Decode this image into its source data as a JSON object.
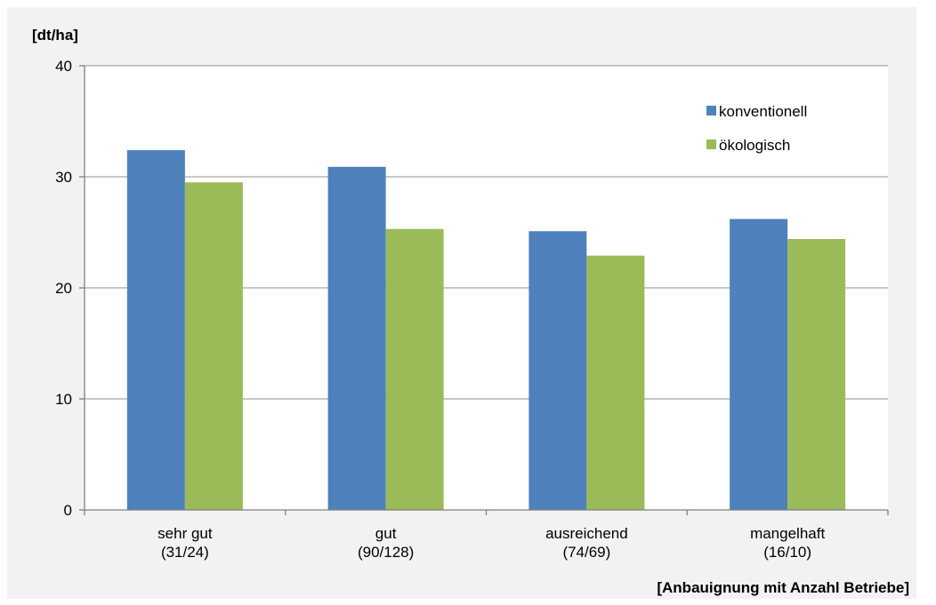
{
  "chart_data": {
    "type": "bar",
    "title": "",
    "ylabel": "[dt/ha]",
    "xlabel": "[Anbauignung mit Anzahl Betriebe]",
    "ylim": [
      0,
      40
    ],
    "yticks": [
      0,
      10,
      20,
      30,
      40
    ],
    "grid": true,
    "legend_position": "top-right",
    "categories": [
      [
        "sehr gut",
        "(31/24)"
      ],
      [
        "gut",
        "(90/128)"
      ],
      [
        "ausreichend",
        "(74/69)"
      ],
      [
        "mangelhaft",
        "(16/10)"
      ]
    ],
    "series": [
      {
        "name": "konventionell",
        "color": "#4f81bd",
        "values": [
          32.4,
          30.9,
          25.1,
          26.2
        ]
      },
      {
        "name": "ökologisch",
        "color": "#9bbb59",
        "values": [
          29.5,
          25.3,
          22.9,
          24.4
        ]
      }
    ],
    "colors": {
      "plot_background": "#ffffff",
      "frame_background": "#f2f2f2",
      "grid": "#a6a6a6",
      "axis": "#808080"
    }
  }
}
